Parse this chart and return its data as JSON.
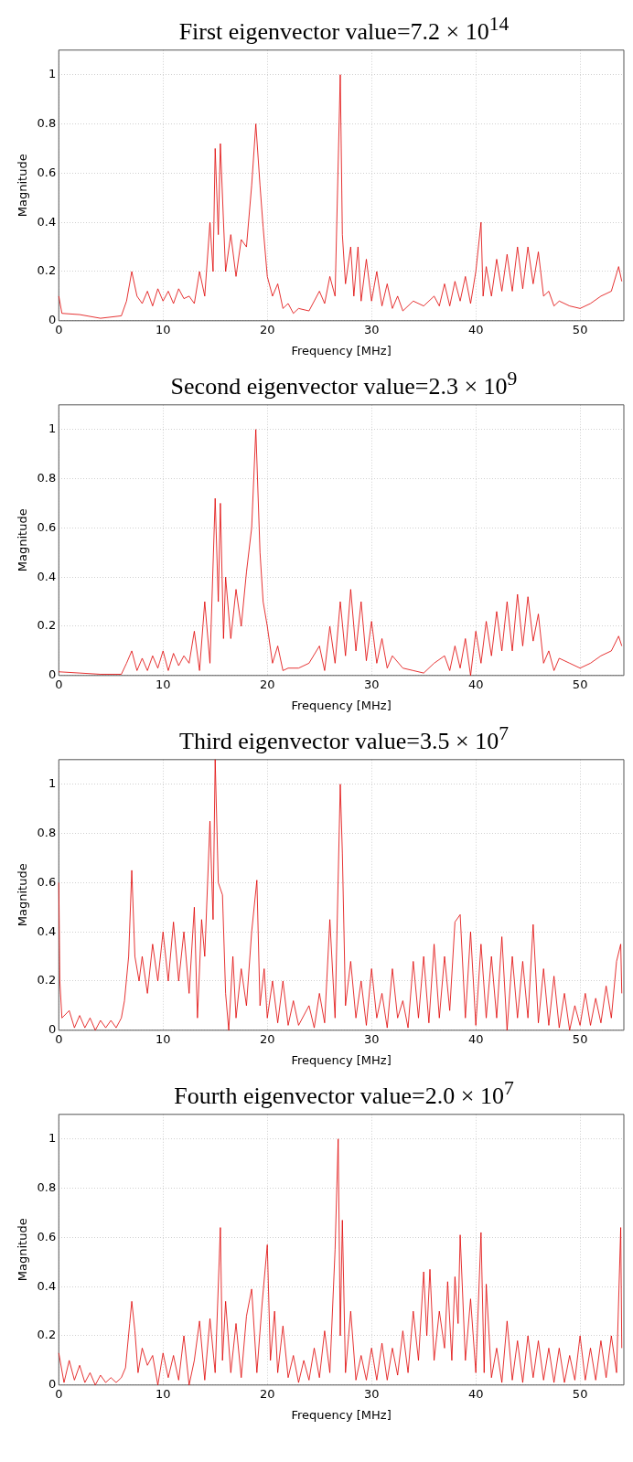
{
  "chart_data": [
    {
      "type": "line",
      "title": "First eigenvector value=7.2 × 10$^{14}$",
      "xlabel": "Frequency [MHz]",
      "ylabel": "Magnitude",
      "color": "#e00000",
      "xlim": [
        0,
        54.2
      ],
      "ylim": [
        0,
        1.1
      ],
      "xticks": [
        0,
        10,
        20,
        30,
        40,
        50
      ],
      "yticks": [
        0,
        0.2,
        0.4,
        0.6,
        0.8,
        1
      ],
      "grid": true,
      "x": [
        0,
        0.3,
        2,
        4,
        6,
        6.5,
        7,
        7.5,
        8,
        8.5,
        9,
        9.5,
        10,
        10.5,
        11,
        11.5,
        12,
        12.5,
        13,
        13.5,
        14,
        14.5,
        14.8,
        15,
        15.3,
        15.5,
        15.8,
        16,
        16.5,
        17,
        17.5,
        18,
        18.5,
        18.9,
        19.3,
        19.6,
        20,
        20.5,
        21,
        21.5,
        22,
        22.5,
        23,
        24,
        25,
        25.5,
        26,
        26.5,
        27,
        27.2,
        27.5,
        28,
        28.3,
        28.7,
        29,
        29.5,
        30,
        30.5,
        31,
        31.5,
        32,
        32.5,
        33,
        34,
        35,
        36,
        36.5,
        37,
        37.5,
        38,
        38.5,
        39,
        39.5,
        40,
        40.5,
        40.7,
        41,
        41.5,
        42,
        42.5,
        43,
        43.5,
        44,
        44.5,
        45,
        45.5,
        46,
        46.5,
        47,
        47.5,
        48,
        49,
        50,
        51,
        52,
        53,
        53.7,
        54
      ],
      "values": [
        0.1,
        0.03,
        0.025,
        0.01,
        0.02,
        0.08,
        0.2,
        0.1,
        0.07,
        0.12,
        0.06,
        0.13,
        0.08,
        0.12,
        0.07,
        0.13,
        0.09,
        0.1,
        0.07,
        0.2,
        0.1,
        0.4,
        0.2,
        0.7,
        0.35,
        0.72,
        0.4,
        0.2,
        0.35,
        0.18,
        0.33,
        0.3,
        0.55,
        0.8,
        0.55,
        0.38,
        0.18,
        0.1,
        0.15,
        0.05,
        0.07,
        0.03,
        0.05,
        0.04,
        0.12,
        0.07,
        0.18,
        0.1,
        1.0,
        0.35,
        0.15,
        0.3,
        0.1,
        0.3,
        0.08,
        0.25,
        0.08,
        0.2,
        0.06,
        0.15,
        0.05,
        0.1,
        0.04,
        0.08,
        0.06,
        0.1,
        0.06,
        0.15,
        0.06,
        0.16,
        0.08,
        0.18,
        0.07,
        0.2,
        0.4,
        0.1,
        0.22,
        0.1,
        0.25,
        0.12,
        0.27,
        0.12,
        0.3,
        0.13,
        0.3,
        0.15,
        0.28,
        0.1,
        0.12,
        0.06,
        0.08,
        0.06,
        0.05,
        0.07,
        0.1,
        0.12,
        0.22,
        0.16
      ]
    },
    {
      "type": "line",
      "title": "Second eigenvector value=2.3 × 10$^{9}$",
      "xlabel": "Frequency [MHz]",
      "ylabel": "Magnitude",
      "color": "#e00000",
      "xlim": [
        0,
        54.2
      ],
      "ylim": [
        0,
        1.1
      ],
      "xticks": [
        0,
        10,
        20,
        30,
        40,
        50
      ],
      "yticks": [
        0,
        0.2,
        0.4,
        0.6,
        0.8,
        1
      ],
      "grid": true,
      "x": [
        0,
        2,
        4,
        6,
        6.5,
        7,
        7.5,
        8,
        8.5,
        9,
        9.5,
        10,
        10.5,
        11,
        11.5,
        12,
        12.5,
        13,
        13.5,
        14,
        14.5,
        15,
        15.3,
        15.5,
        15.8,
        16,
        16.5,
        17,
        17.5,
        18,
        18.5,
        18.9,
        19.3,
        19.6,
        20,
        20.5,
        21,
        21.5,
        22,
        23,
        24,
        25,
        25.5,
        26,
        26.5,
        27,
        27.5,
        28,
        28.5,
        29,
        29.5,
        30,
        30.5,
        31,
        31.5,
        32,
        33,
        34,
        35,
        36,
        37,
        37.5,
        38,
        38.5,
        39,
        39.5,
        40,
        40.5,
        41,
        41.5,
        42,
        42.5,
        43,
        43.5,
        44,
        44.5,
        45,
        45.5,
        46,
        46.5,
        47,
        47.5,
        48,
        49,
        50,
        51,
        52,
        53,
        53.7,
        54
      ],
      "values": [
        0.015,
        0.01,
        0.005,
        0.005,
        0.05,
        0.1,
        0.02,
        0.07,
        0.02,
        0.08,
        0.03,
        0.1,
        0.02,
        0.09,
        0.04,
        0.08,
        0.05,
        0.18,
        0.02,
        0.3,
        0.05,
        0.72,
        0.3,
        0.7,
        0.15,
        0.4,
        0.15,
        0.35,
        0.2,
        0.42,
        0.6,
        1.0,
        0.5,
        0.3,
        0.2,
        0.05,
        0.12,
        0.02,
        0.03,
        0.03,
        0.05,
        0.12,
        0.02,
        0.2,
        0.05,
        0.3,
        0.08,
        0.35,
        0.1,
        0.3,
        0.06,
        0.22,
        0.05,
        0.15,
        0.03,
        0.08,
        0.03,
        0.02,
        0.01,
        0.05,
        0.08,
        0.02,
        0.12,
        0.03,
        0.15,
        0.0,
        0.18,
        0.05,
        0.22,
        0.08,
        0.26,
        0.1,
        0.3,
        0.1,
        0.33,
        0.12,
        0.32,
        0.14,
        0.25,
        0.05,
        0.1,
        0.02,
        0.07,
        0.05,
        0.03,
        0.05,
        0.08,
        0.1,
        0.16,
        0.12
      ]
    },
    {
      "type": "line",
      "title": "Third eigenvector value=3.5 × 10$^{7}$",
      "xlabel": "Frequency [MHz]",
      "ylabel": "Magnitude",
      "color": "#e00000",
      "xlim": [
        0,
        54.2
      ],
      "ylim": [
        0,
        1.1
      ],
      "xticks": [
        0,
        10,
        20,
        30,
        40,
        50
      ],
      "yticks": [
        0,
        0.2,
        0.4,
        0.6,
        0.8,
        1
      ],
      "grid": true,
      "x": [
        0,
        0.1,
        0.3,
        1,
        1.5,
        2,
        2.5,
        3,
        3.5,
        4,
        4.5,
        5,
        5.5,
        6,
        6.3,
        6.7,
        7,
        7.3,
        7.7,
        8,
        8.5,
        9,
        9.5,
        10,
        10.5,
        11,
        11.5,
        12,
        12.5,
        13,
        13.3,
        13.7,
        14,
        14.5,
        14.8,
        15,
        15.3,
        15.7,
        16,
        16.3,
        16.7,
        17,
        17.5,
        18,
        18.5,
        19,
        19.3,
        19.7,
        20,
        20.5,
        21,
        21.5,
        22,
        22.5,
        23,
        24,
        24.5,
        25,
        25.5,
        26,
        26.5,
        27,
        27.2,
        27.5,
        28,
        28.5,
        29,
        29.5,
        30,
        30.5,
        31,
        31.5,
        32,
        32.5,
        33,
        33.5,
        34,
        34.5,
        35,
        35.5,
        36,
        36.5,
        37,
        37.5,
        38,
        38.5,
        39,
        39.5,
        40,
        40.5,
        41,
        41.5,
        42,
        42.5,
        43,
        43.5,
        44,
        44.5,
        45,
        45.5,
        46,
        46.5,
        47,
        47.5,
        48,
        48.5,
        49,
        49.5,
        50,
        50.5,
        51,
        51.5,
        52,
        52.5,
        53,
        53.5,
        53.9,
        54
      ],
      "values": [
        0.6,
        0.2,
        0.05,
        0.08,
        0.01,
        0.06,
        0.01,
        0.05,
        0.0,
        0.04,
        0.01,
        0.04,
        0.01,
        0.05,
        0.12,
        0.3,
        0.65,
        0.3,
        0.2,
        0.3,
        0.15,
        0.35,
        0.2,
        0.4,
        0.2,
        0.44,
        0.2,
        0.4,
        0.15,
        0.5,
        0.05,
        0.45,
        0.3,
        0.85,
        0.45,
        1.1,
        0.6,
        0.55,
        0.15,
        0.0,
        0.3,
        0.05,
        0.25,
        0.1,
        0.4,
        0.61,
        0.1,
        0.25,
        0.05,
        0.2,
        0.03,
        0.2,
        0.02,
        0.12,
        0.02,
        0.1,
        0.01,
        0.15,
        0.03,
        0.45,
        0.05,
        1.0,
        0.72,
        0.1,
        0.28,
        0.05,
        0.2,
        0.02,
        0.25,
        0.05,
        0.15,
        0.01,
        0.25,
        0.05,
        0.12,
        0.01,
        0.28,
        0.05,
        0.3,
        0.03,
        0.35,
        0.05,
        0.3,
        0.08,
        0.44,
        0.47,
        0.05,
        0.4,
        0.02,
        0.35,
        0.05,
        0.3,
        0.05,
        0.38,
        0.0,
        0.3,
        0.05,
        0.28,
        0.05,
        0.43,
        0.03,
        0.25,
        0.02,
        0.22,
        0.01,
        0.15,
        0.0,
        0.1,
        0.02,
        0.15,
        0.02,
        0.13,
        0.03,
        0.18,
        0.05,
        0.28,
        0.35,
        0.15
      ]
    },
    {
      "type": "line",
      "title": "Fourth eigenvector value=2.0 × 10$^{7}$",
      "xlabel": "Frequency [MHz]",
      "ylabel": "Magnitude",
      "color": "#e00000",
      "xlim": [
        0,
        54.2
      ],
      "ylim": [
        0,
        1.1
      ],
      "xticks": [
        0,
        10,
        20,
        30,
        40,
        50
      ],
      "yticks": [
        0,
        0.2,
        0.4,
        0.6,
        0.8,
        1
      ],
      "grid": true,
      "x": [
        0,
        0.5,
        1,
        1.5,
        2,
        2.5,
        3,
        3.5,
        4,
        4.5,
        5,
        5.5,
        6,
        6.4,
        6.8,
        7,
        7.3,
        7.6,
        8,
        8.5,
        9,
        9.5,
        10,
        10.5,
        11,
        11.5,
        12,
        12.5,
        13,
        13.5,
        14,
        14.5,
        15,
        15.5,
        15.7,
        16,
        16.5,
        17,
        17.5,
        18,
        18.5,
        19,
        19.5,
        20,
        20.3,
        20.7,
        21,
        21.5,
        22,
        22.5,
        23,
        23.5,
        24,
        24.5,
        25,
        25.5,
        26,
        26.5,
        26.8,
        27,
        27.2,
        27.5,
        28,
        28.5,
        29,
        29.5,
        30,
        30.5,
        31,
        31.5,
        32,
        32.5,
        33,
        33.5,
        34,
        34.5,
        35,
        35.3,
        35.6,
        36,
        36.5,
        37,
        37.3,
        37.7,
        38,
        38.3,
        38.5,
        39,
        39.5,
        40,
        40.5,
        40.8,
        41,
        41.5,
        42,
        42.5,
        43,
        43.5,
        44,
        44.5,
        45,
        45.5,
        46,
        46.5,
        47,
        47.5,
        48,
        48.5,
        49,
        49.5,
        50,
        50.5,
        51,
        51.5,
        52,
        52.5,
        53,
        53.5,
        53.9,
        54
      ],
      "values": [
        0.13,
        0.01,
        0.1,
        0.02,
        0.08,
        0.01,
        0.05,
        0.0,
        0.04,
        0.01,
        0.03,
        0.01,
        0.03,
        0.07,
        0.25,
        0.34,
        0.22,
        0.05,
        0.15,
        0.08,
        0.12,
        0.0,
        0.13,
        0.03,
        0.12,
        0.02,
        0.2,
        0.0,
        0.1,
        0.26,
        0.02,
        0.27,
        0.05,
        0.64,
        0.1,
        0.34,
        0.05,
        0.25,
        0.03,
        0.28,
        0.39,
        0.05,
        0.33,
        0.57,
        0.1,
        0.3,
        0.05,
        0.24,
        0.03,
        0.12,
        0.01,
        0.1,
        0.02,
        0.15,
        0.03,
        0.22,
        0.05,
        0.55,
        1.0,
        0.2,
        0.67,
        0.05,
        0.3,
        0.02,
        0.12,
        0.02,
        0.15,
        0.02,
        0.17,
        0.02,
        0.15,
        0.04,
        0.22,
        0.05,
        0.3,
        0.1,
        0.46,
        0.2,
        0.47,
        0.1,
        0.3,
        0.15,
        0.42,
        0.1,
        0.44,
        0.25,
        0.61,
        0.1,
        0.35,
        0.05,
        0.62,
        0.05,
        0.41,
        0.03,
        0.15,
        0.01,
        0.26,
        0.02,
        0.18,
        0.01,
        0.2,
        0.03,
        0.18,
        0.02,
        0.15,
        0.01,
        0.15,
        0.01,
        0.12,
        0.02,
        0.2,
        0.02,
        0.15,
        0.02,
        0.18,
        0.03,
        0.2,
        0.05,
        0.64,
        0.15
      ]
    }
  ]
}
